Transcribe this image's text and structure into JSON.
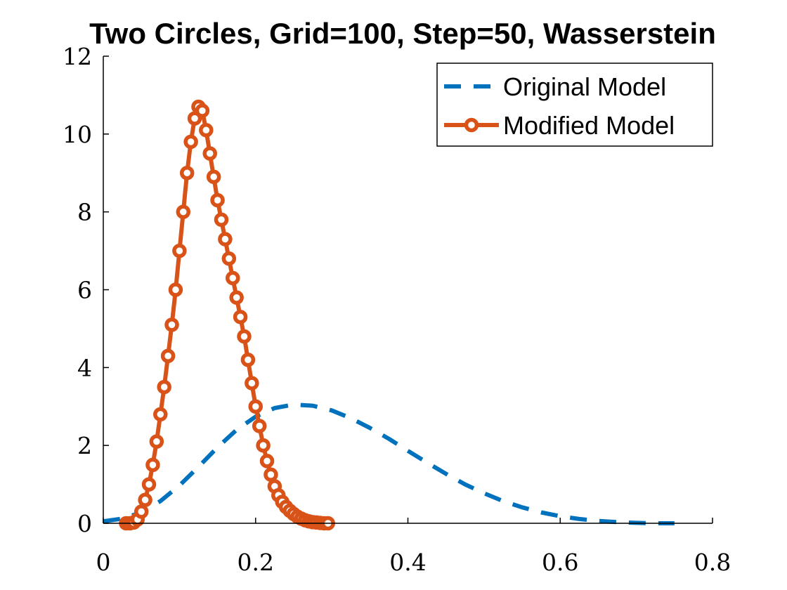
{
  "chart_data": {
    "type": "line",
    "title": "Two Circles, Grid=100, Step=50, Wasserstein",
    "xlabel": "",
    "ylabel": "",
    "xlim": [
      0,
      0.8
    ],
    "ylim": [
      0,
      12
    ],
    "xticks": [
      0,
      0.2,
      0.4,
      0.6,
      0.8
    ],
    "xtick_labels": [
      "0",
      "0.2",
      "0.4",
      "0.6",
      "0.8"
    ],
    "yticks": [
      0,
      2,
      4,
      6,
      8,
      10,
      12
    ],
    "ytick_labels": [
      "0",
      "2",
      "4",
      "6",
      "8",
      "10",
      "12"
    ],
    "grid": false,
    "legend_position": "top-right",
    "series": [
      {
        "name": "Original Model",
        "color": "#0072BD",
        "style": "dashed",
        "x": [
          0,
          0.025,
          0.05,
          0.075,
          0.1,
          0.125,
          0.15,
          0.175,
          0.2,
          0.225,
          0.25,
          0.275,
          0.3,
          0.325,
          0.35,
          0.375,
          0.4,
          0.425,
          0.45,
          0.475,
          0.5,
          0.525,
          0.55,
          0.575,
          0.6,
          0.625,
          0.65,
          0.675,
          0.7,
          0.725,
          0.75
        ],
        "y": [
          0.05,
          0.12,
          0.28,
          0.57,
          0.97,
          1.45,
          1.95,
          2.4,
          2.74,
          2.96,
          3.05,
          3.02,
          2.9,
          2.7,
          2.45,
          2.17,
          1.86,
          1.56,
          1.27,
          1.0,
          0.77,
          0.57,
          0.41,
          0.28,
          0.18,
          0.11,
          0.06,
          0.03,
          0.01,
          0.0,
          0.0
        ]
      },
      {
        "name": "Modified Model",
        "color": "#D95319",
        "style": "solid-circle-markers",
        "x": [
          0.03,
          0.035,
          0.04,
          0.045,
          0.05,
          0.055,
          0.06,
          0.065,
          0.07,
          0.075,
          0.08,
          0.085,
          0.09,
          0.095,
          0.1,
          0.105,
          0.11,
          0.115,
          0.12,
          0.125,
          0.13,
          0.135,
          0.14,
          0.145,
          0.15,
          0.155,
          0.16,
          0.165,
          0.17,
          0.175,
          0.18,
          0.185,
          0.19,
          0.195,
          0.2,
          0.205,
          0.21,
          0.215,
          0.22,
          0.225,
          0.23,
          0.235,
          0.24,
          0.245,
          0.25,
          0.255,
          0.26,
          0.265,
          0.27,
          0.275,
          0.28,
          0.285,
          0.29,
          0.295
        ],
        "y": [
          0.0,
          0.0,
          0.02,
          0.1,
          0.3,
          0.6,
          1.0,
          1.5,
          2.1,
          2.8,
          3.5,
          4.3,
          5.1,
          6.0,
          7.0,
          8.0,
          9.0,
          9.8,
          10.4,
          10.7,
          10.6,
          10.1,
          9.5,
          8.9,
          8.3,
          7.8,
          7.3,
          6.8,
          6.3,
          5.8,
          5.3,
          4.8,
          4.2,
          3.6,
          3.0,
          2.5,
          2.0,
          1.6,
          1.25,
          0.95,
          0.72,
          0.55,
          0.42,
          0.32,
          0.24,
          0.17,
          0.12,
          0.08,
          0.05,
          0.03,
          0.02,
          0.01,
          0.0,
          0.0
        ]
      }
    ]
  }
}
